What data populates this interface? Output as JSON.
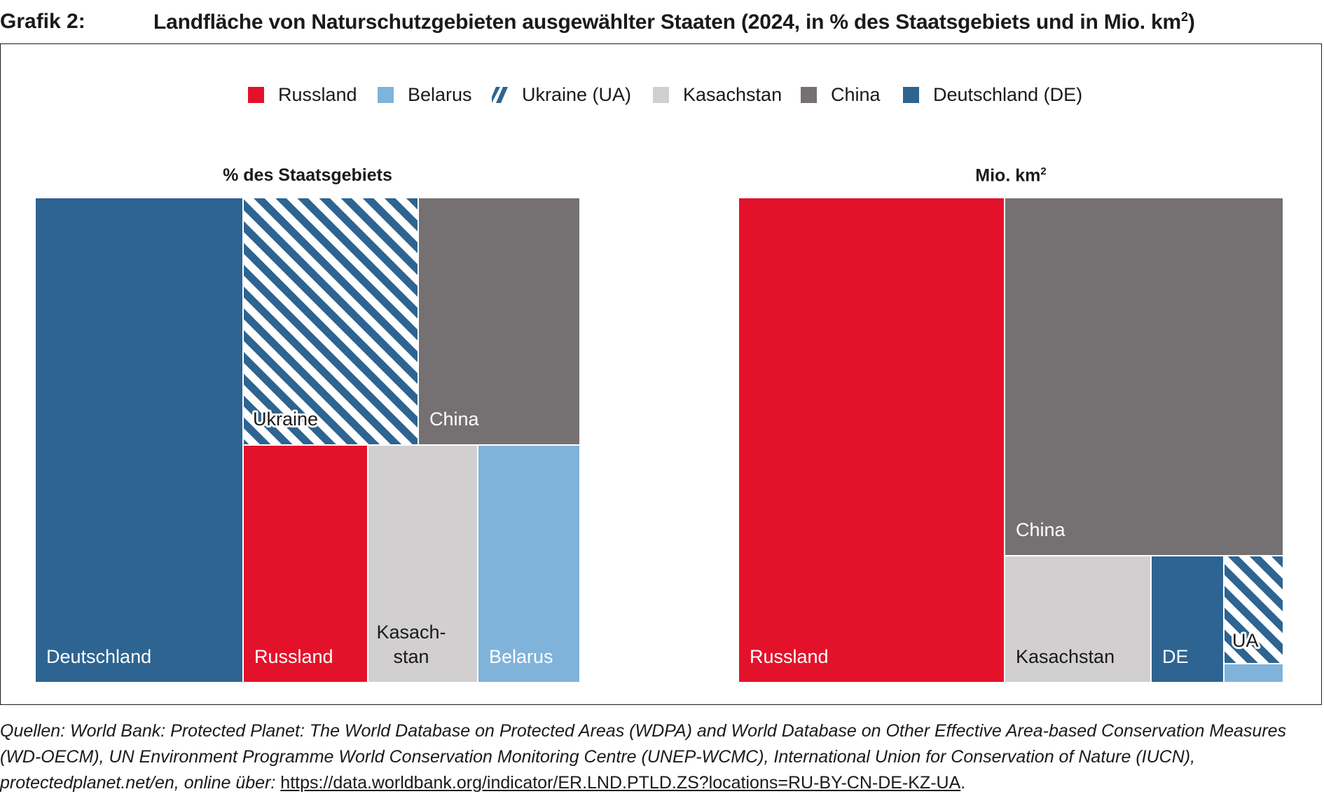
{
  "header": {
    "label": "Grafik 2:",
    "title": "Landfläche von Naturschutzgebieten ausgewählter Staaten (2024, in % des Staatsgebiets und in Mio. km",
    "title_sup": "2",
    "title_end": ")"
  },
  "legend": [
    {
      "name": "Russland",
      "color": "#e3122a",
      "pattern": "solid"
    },
    {
      "name": "Belarus",
      "color": "#80b3da",
      "pattern": "solid"
    },
    {
      "name": "Ukraine (UA)",
      "color": "#2e6491",
      "pattern": "hatch"
    },
    {
      "name": "Kasachstan",
      "color": "#d1cfd0",
      "pattern": "solid"
    },
    {
      "name": "China",
      "color": "#757172",
      "pattern": "solid"
    },
    {
      "name": "Deutschland (DE)",
      "color": "#2e6491",
      "pattern": "solid"
    }
  ],
  "chart_data": [
    {
      "type": "treemap",
      "title": "% des Staatsgebiets",
      "unit": "% des Staatsgebiets",
      "cells": [
        {
          "country": "Deutschland",
          "label": "Deutschland",
          "share_of_area": 0.381,
          "color": "#2e6491",
          "pattern": "solid"
        },
        {
          "country": "Ukraine",
          "label": "Ukraine",
          "share_of_area": 0.164,
          "color": "#2e6491",
          "pattern": "hatch"
        },
        {
          "country": "China",
          "label": "China",
          "share_of_area": 0.151,
          "color": "#757172",
          "pattern": "solid"
        },
        {
          "country": "Russland",
          "label": "Russland",
          "share_of_area": 0.101,
          "color": "#e3122a",
          "pattern": "solid"
        },
        {
          "country": "Kasachstan",
          "label_lines": [
            "Kasach-",
            "stan"
          ],
          "share_of_area": 0.089,
          "color": "#d1cfd0",
          "pattern": "solid"
        },
        {
          "country": "Belarus",
          "label": "Belarus",
          "share_of_area": 0.114,
          "color": "#80b3da",
          "pattern": "solid"
        }
      ]
    },
    {
      "type": "treemap",
      "title": "Mio. km",
      "title_sup": "2",
      "unit": "Mio. km²",
      "cells": [
        {
          "country": "Russland",
          "label": "Russland",
          "share_of_area": 0.485,
          "color": "#e3122a",
          "pattern": "solid"
        },
        {
          "country": "China",
          "label": "China",
          "share_of_area": 0.364,
          "color": "#757172",
          "pattern": "solid"
        },
        {
          "country": "Kasachstan",
          "label": "Kasachstan",
          "share_of_area": 0.069,
          "color": "#d1cfd0",
          "pattern": "solid"
        },
        {
          "country": "Deutschland",
          "label": "DE",
          "share_of_area": 0.034,
          "color": "#2e6491",
          "pattern": "solid"
        },
        {
          "country": "Ukraine",
          "label": "UA",
          "share_of_area": 0.023,
          "color": "#2e6491",
          "pattern": "hatch"
        },
        {
          "country": "Belarus",
          "label": "",
          "share_of_area": 0.004,
          "color": "#80b3da",
          "pattern": "solid"
        }
      ]
    }
  ],
  "source": {
    "text": "Quellen: World Bank: Protected Planet: The World Database on Protected Areas (WDPA) and World Database on Other Effective Area-based Conservation Measures (WD-OECM), UN Environment Programme World Conservation Monitoring Centre (UNEP-WCMC), International Union for Conservation of Nature (IUCN), protectedplanet.net/en, online über: ",
    "link": "https://data.worldbank.org/indicator/ER.LND.PTLD.ZS?locations=RU-BY-CN-DE-KZ-UA",
    "end": "."
  }
}
